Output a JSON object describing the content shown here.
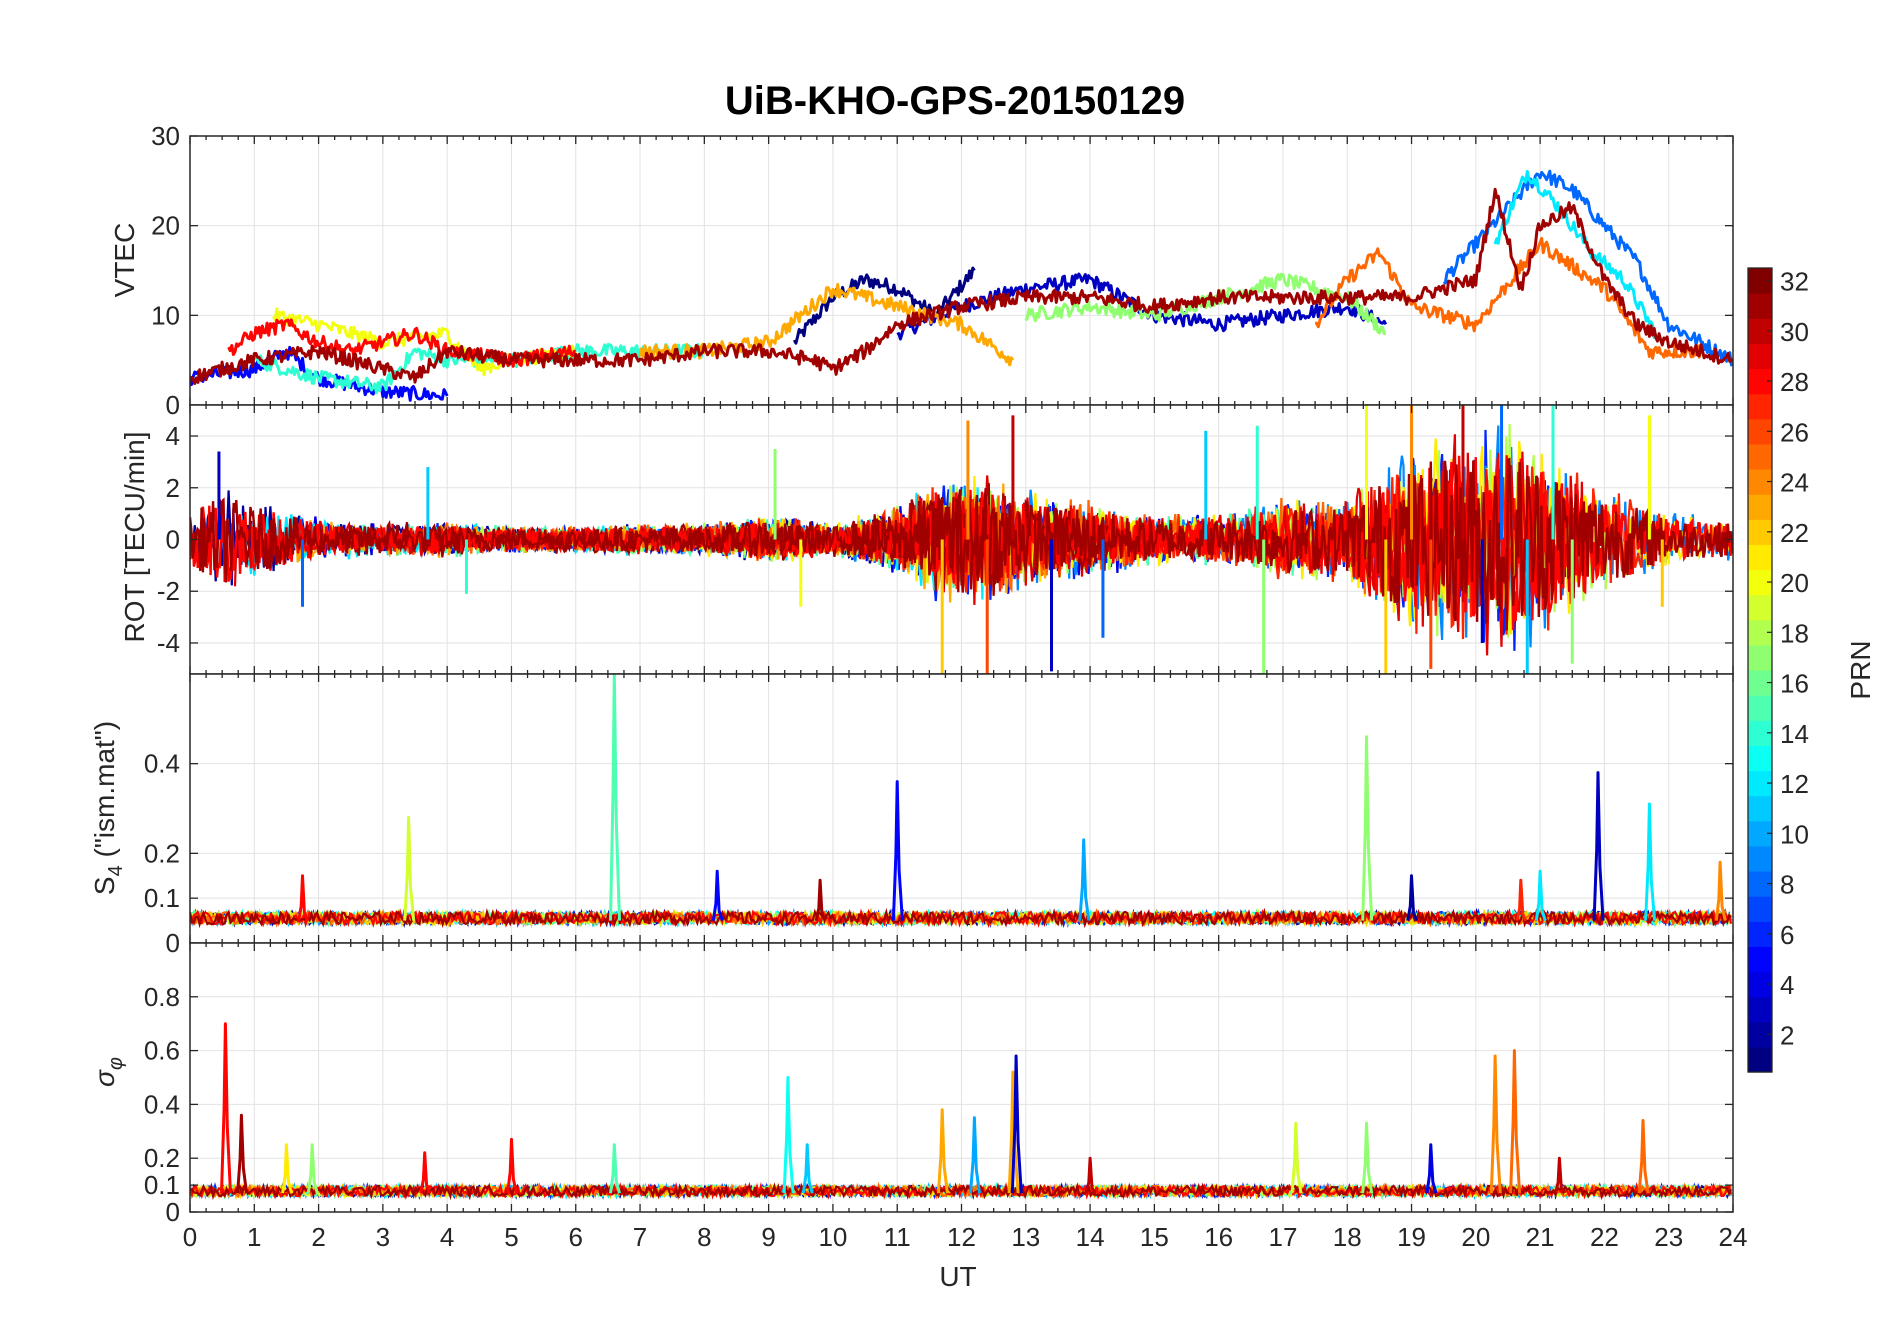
{
  "figure": {
    "title": "UiB-KHO-GPS-20150129"
  },
  "colorbar": {
    "label": "PRN",
    "range": [
      1,
      32
    ],
    "colormap": "jet",
    "ticks": [
      "2",
      "4",
      "6",
      "8",
      "10",
      "12",
      "14",
      "16",
      "18",
      "20",
      "22",
      "24",
      "26",
      "28",
      "30",
      "32"
    ],
    "tick_values": [
      2,
      4,
      6,
      8,
      10,
      12,
      14,
      16,
      18,
      20,
      22,
      24,
      26,
      28,
      30,
      32
    ]
  },
  "chart_data": [
    {
      "type": "line",
      "panel": "vtec",
      "ylabel": "VTEC",
      "xlim": [
        0,
        24
      ],
      "ylim": [
        0,
        30
      ],
      "ytick_values": [
        0,
        10,
        20,
        30
      ],
      "ytick_labels": [
        "0",
        "10",
        "20",
        "30"
      ],
      "xtick_labels": [],
      "grid": true,
      "series": [
        {
          "prn": 1,
          "x": [
            9.4,
            10.0,
            10.5,
            11.0,
            11.6,
            12.2
          ],
          "y": [
            7,
            12,
            14,
            13,
            10,
            15
          ]
        },
        {
          "prn": 3,
          "x": [
            11.0,
            12.0,
            13.0,
            14.0,
            15.0,
            16.0,
            17.0,
            18.0,
            18.6
          ],
          "y": [
            8,
            11,
            13,
            14,
            10,
            9,
            10,
            11,
            9
          ]
        },
        {
          "prn": 5,
          "x": [
            0.0,
            1.0,
            1.5,
            2.0,
            3.0,
            4.0
          ],
          "y": [
            3,
            4,
            6,
            3,
            1.5,
            1
          ]
        },
        {
          "prn": 8,
          "x": [
            19.5,
            20.0,
            20.5,
            21.0,
            21.5,
            22.0,
            22.5,
            23.0,
            24.0
          ],
          "y": [
            14,
            18,
            22,
            26,
            24,
            20,
            16,
            9,
            5
          ]
        },
        {
          "prn": 12,
          "x": [
            20.3,
            20.8,
            21.3,
            21.8,
            22.3,
            22.8
          ],
          "y": [
            18,
            26,
            22,
            17,
            14,
            8
          ]
        },
        {
          "prn": 14,
          "x": [
            1.0,
            2.0,
            3.0,
            3.5,
            4.0,
            5.0,
            6.0,
            7.0,
            8.0
          ],
          "y": [
            5,
            3,
            2,
            6,
            5,
            5,
            6,
            6,
            6
          ]
        },
        {
          "prn": 17,
          "x": [
            13.0,
            14.0,
            15.0,
            16.0,
            17.0,
            18.0,
            18.6
          ],
          "y": [
            10,
            11,
            10,
            12,
            14,
            12,
            8
          ]
        },
        {
          "prn": 20,
          "x": [
            1.3,
            2.0,
            3.0,
            4.0,
            4.5,
            5.0,
            6.0
          ],
          "y": [
            10,
            9,
            7,
            8,
            4,
            5,
            6
          ]
        },
        {
          "prn": 23,
          "x": [
            7.0,
            8.0,
            9.0,
            10.0,
            11.0,
            12.0,
            12.8
          ],
          "y": [
            6,
            6,
            7,
            13,
            11,
            9,
            5
          ]
        },
        {
          "prn": 25,
          "x": [
            17.5,
            18.0,
            18.5,
            19.0,
            20.0,
            21.0,
            22.0,
            22.7,
            23.5
          ],
          "y": [
            9,
            14,
            17,
            11,
            9,
            18,
            13,
            6,
            6
          ]
        },
        {
          "prn": 28,
          "x": [
            0.6,
            1.0,
            1.5,
            2.0,
            2.5,
            3.0,
            3.5,
            4.0,
            5.0,
            6.0
          ],
          "y": [
            6,
            8,
            9,
            7,
            6,
            7,
            8,
            6,
            5,
            6
          ]
        },
        {
          "prn": 31,
          "x": [
            0.0,
            1.0,
            2.0,
            3.0,
            3.5,
            4.0,
            5.0,
            6.0,
            7.0,
            8.0,
            9.0,
            9.7,
            10.0,
            10.5,
            11.0,
            12.0,
            13.0,
            14.0,
            15.0,
            16.0,
            17.0,
            18.0,
            19.0,
            20.0,
            20.3,
            20.7,
            21.0,
            21.5,
            22.0,
            22.5,
            23.0,
            24.0
          ],
          "y": [
            3,
            5,
            6,
            4,
            3,
            6,
            5,
            5,
            5,
            6,
            6,
            5,
            4,
            6,
            9,
            11,
            12,
            12,
            11,
            12,
            12,
            12,
            12,
            14,
            24,
            13,
            20,
            22,
            14,
            9,
            7,
            5
          ]
        }
      ]
    },
    {
      "type": "line",
      "panel": "rot",
      "ylabel": "ROT [TECU/min]",
      "xlim": [
        0,
        24
      ],
      "ylim": [
        -5.2,
        5.2
      ],
      "ytick_values": [
        -4,
        -2,
        0,
        2,
        4
      ],
      "ytick_labels": [
        "-4",
        "-2",
        "0",
        "2",
        "4"
      ],
      "xtick_labels": [],
      "grid": true,
      "envelope_note": "fluctuation amplitude (TECU/min) over UT",
      "envelope": {
        "x": [
          0,
          0.5,
          1,
          2,
          3,
          4,
          5,
          6,
          7,
          8,
          9,
          10,
          11,
          11.5,
          12,
          13,
          14,
          15,
          16,
          17,
          18,
          18.5,
          19,
          19.5,
          20,
          20.5,
          21,
          21.5,
          22,
          23,
          24
        ],
        "amp": [
          1.2,
          2.2,
          1.6,
          0.8,
          0.6,
          0.7,
          0.5,
          0.5,
          0.6,
          0.6,
          0.9,
          0.6,
          1.3,
          2.2,
          2.6,
          1.8,
          1.4,
          1.0,
          1.0,
          1.5,
          1.6,
          2.8,
          3.5,
          4.0,
          4.2,
          4.5,
          3.8,
          3.0,
          2.2,
          1.0,
          0.8
        ]
      },
      "peaks": [
        {
          "x": 0.45,
          "y": 3.4
        },
        {
          "x": 1.75,
          "y": -2.6
        },
        {
          "x": 3.7,
          "y": 2.8
        },
        {
          "x": 4.3,
          "y": -2.1
        },
        {
          "x": 9.1,
          "y": 3.5
        },
        {
          "x": 9.5,
          "y": -2.6
        },
        {
          "x": 11.7,
          "y": -5.2
        },
        {
          "x": 12.1,
          "y": 4.6
        },
        {
          "x": 12.4,
          "y": -5.2
        },
        {
          "x": 12.8,
          "y": 4.8
        },
        {
          "x": 13.4,
          "y": -5.1
        },
        {
          "x": 14.2,
          "y": -3.8
        },
        {
          "x": 15.8,
          "y": 4.2
        },
        {
          "x": 16.6,
          "y": 4.4
        },
        {
          "x": 16.7,
          "y": -5.2
        },
        {
          "x": 18.3,
          "y": 5.2
        },
        {
          "x": 18.6,
          "y": -5.2
        },
        {
          "x": 19.0,
          "y": 5.2
        },
        {
          "x": 19.3,
          "y": -5.0
        },
        {
          "x": 19.8,
          "y": 5.2
        },
        {
          "x": 20.1,
          "y": -4.0
        },
        {
          "x": 20.4,
          "y": 5.2
        },
        {
          "x": 20.8,
          "y": -5.2
        },
        {
          "x": 21.2,
          "y": 5.2
        },
        {
          "x": 21.5,
          "y": -4.8
        },
        {
          "x": 22.7,
          "y": 4.8
        },
        {
          "x": 22.9,
          "y": -2.6
        }
      ]
    },
    {
      "type": "line",
      "panel": "s4",
      "ylabel": "S4 (\"ism.mat\")",
      "ylabel_main": "S",
      "ylabel_sub": "4",
      "ylabel_rest": " (\"ism.mat\")",
      "xlim": [
        0,
        24
      ],
      "ylim": [
        0,
        0.6
      ],
      "ytick_values": [
        0,
        0.1,
        0.2,
        0.4
      ],
      "ytick_labels": [
        "0",
        "0.1",
        "0.2",
        "0.4"
      ],
      "xtick_labels": [],
      "grid": true,
      "baseline": 0.05,
      "spikes": [
        {
          "x": 1.75,
          "y": 0.15,
          "prn": 28
        },
        {
          "x": 3.4,
          "y": 0.28,
          "prn": 19
        },
        {
          "x": 6.6,
          "y": 0.6,
          "prn": 15
        },
        {
          "x": 8.2,
          "y": 0.16,
          "prn": 5
        },
        {
          "x": 9.8,
          "y": 0.14,
          "prn": 31
        },
        {
          "x": 11.0,
          "y": 0.36,
          "prn": 5
        },
        {
          "x": 13.9,
          "y": 0.23,
          "prn": 10
        },
        {
          "x": 18.3,
          "y": 0.46,
          "prn": 17
        },
        {
          "x": 19.0,
          "y": 0.15,
          "prn": 2
        },
        {
          "x": 20.7,
          "y": 0.14,
          "prn": 27
        },
        {
          "x": 21.0,
          "y": 0.16,
          "prn": 12
        },
        {
          "x": 21.9,
          "y": 0.38,
          "prn": 3
        },
        {
          "x": 22.7,
          "y": 0.31,
          "prn": 12
        },
        {
          "x": 23.8,
          "y": 0.18,
          "prn": 24
        }
      ]
    },
    {
      "type": "line",
      "panel": "sigma_phi",
      "ylabel": "σφ",
      "ylabel_main": "σ",
      "ylabel_sub": "φ",
      "xlabel": "UT",
      "xlim": [
        0,
        24
      ],
      "ylim": [
        0,
        1
      ],
      "ytick_values": [
        0,
        0.1,
        0.2,
        0.4,
        0.6,
        0.8
      ],
      "ytick_labels": [
        "0",
        "0.1",
        "0.2",
        "0.4",
        "0.6",
        "0.8"
      ],
      "xtick_labels": [
        "0",
        "1",
        "2",
        "3",
        "4",
        "5",
        "6",
        "7",
        "8",
        "9",
        "10",
        "11",
        "12",
        "13",
        "14",
        "15",
        "16",
        "17",
        "18",
        "19",
        "20",
        "21",
        "22",
        "23",
        "24"
      ],
      "grid": true,
      "baseline": 0.07,
      "spikes": [
        {
          "x": 0.55,
          "y": 0.7,
          "prn": 28
        },
        {
          "x": 0.8,
          "y": 0.36,
          "prn": 31
        },
        {
          "x": 1.5,
          "y": 0.25,
          "prn": 21
        },
        {
          "x": 1.9,
          "y": 0.25,
          "prn": 17
        },
        {
          "x": 3.65,
          "y": 0.22,
          "prn": 28
        },
        {
          "x": 5.0,
          "y": 0.27,
          "prn": 28
        },
        {
          "x": 6.6,
          "y": 0.25,
          "prn": 15
        },
        {
          "x": 9.3,
          "y": 0.5,
          "prn": 13
        },
        {
          "x": 9.6,
          "y": 0.25,
          "prn": 11
        },
        {
          "x": 11.7,
          "y": 0.38,
          "prn": 23
        },
        {
          "x": 12.2,
          "y": 0.35,
          "prn": 10
        },
        {
          "x": 12.8,
          "y": 0.52,
          "prn": 23
        },
        {
          "x": 12.85,
          "y": 0.58,
          "prn": 3
        },
        {
          "x": 14.0,
          "y": 0.2,
          "prn": 30
        },
        {
          "x": 17.2,
          "y": 0.33,
          "prn": 19
        },
        {
          "x": 18.3,
          "y": 0.33,
          "prn": 17
        },
        {
          "x": 19.3,
          "y": 0.25,
          "prn": 4
        },
        {
          "x": 20.3,
          "y": 0.58,
          "prn": 24
        },
        {
          "x": 20.6,
          "y": 0.6,
          "prn": 25
        },
        {
          "x": 21.3,
          "y": 0.2,
          "prn": 30
        },
        {
          "x": 22.6,
          "y": 0.34,
          "prn": 25
        }
      ]
    }
  ]
}
